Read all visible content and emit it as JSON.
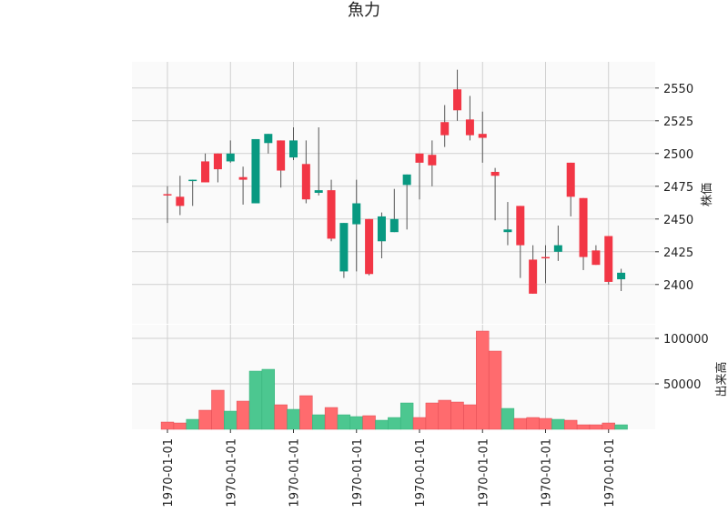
{
  "chart_data": {
    "type": "candlestick",
    "title": "魚力",
    "price_ylabel": "株価",
    "volume_ylabel": "出来高",
    "price_ylim": [
      2370,
      2570
    ],
    "volume_ylim": [
      0,
      115000
    ],
    "price_ticks": [
      2400,
      2425,
      2450,
      2475,
      2500,
      2525,
      2550
    ],
    "volume_ticks": [
      50000,
      100000
    ],
    "x_tick_labels": [
      "1970-01-01",
      "1970-01-01",
      "1970-01-01",
      "1970-01-01",
      "1970-01-01",
      "1970-01-01",
      "1970-01-01",
      "1970-01-01"
    ],
    "x_tick_indices": [
      0,
      5,
      10,
      15,
      20,
      25,
      30,
      35
    ],
    "up_color": "#f23645",
    "down_color": "#089981",
    "candles": [
      {
        "open": 2469,
        "high": 2475,
        "low": 2447,
        "close": 2469,
        "volume": 8000
      },
      {
        "open": 2460,
        "high": 2483,
        "low": 2453,
        "close": 2467,
        "volume": 7000
      },
      {
        "open": 2480,
        "high": 2480,
        "low": 2460,
        "close": 2479,
        "volume": 11000
      },
      {
        "open": 2478,
        "high": 2500,
        "low": 2478,
        "close": 2494,
        "volume": 21000
      },
      {
        "open": 2488,
        "high": 2500,
        "low": 2478,
        "close": 2500,
        "volume": 43000
      },
      {
        "open": 2500,
        "high": 2510,
        "low": 2493,
        "close": 2494,
        "volume": 20000
      },
      {
        "open": 2480,
        "high": 2490,
        "low": 2461,
        "close": 2482,
        "volume": 31000
      },
      {
        "open": 2511,
        "high": 2511,
        "low": 2462,
        "close": 2462,
        "volume": 64000
      },
      {
        "open": 2515,
        "high": 2515,
        "low": 2500,
        "close": 2508,
        "volume": 66000
      },
      {
        "open": 2487,
        "high": 2510,
        "low": 2474,
        "close": 2510,
        "volume": 27000
      },
      {
        "open": 2510,
        "high": 2520,
        "low": 2495,
        "close": 2497,
        "volume": 22000
      },
      {
        "open": 2465,
        "high": 2510,
        "low": 2462,
        "close": 2492,
        "volume": 37000
      },
      {
        "open": 2472,
        "high": 2520,
        "low": 2468,
        "close": 2470,
        "volume": 16000
      },
      {
        "open": 2435,
        "high": 2480,
        "low": 2433,
        "close": 2472,
        "volume": 24000
      },
      {
        "open": 2447,
        "high": 2447,
        "low": 2405,
        "close": 2410,
        "volume": 16000
      },
      {
        "open": 2462,
        "high": 2480,
        "low": 2410,
        "close": 2446,
        "volume": 14000
      },
      {
        "open": 2408,
        "high": 2450,
        "low": 2407,
        "close": 2450,
        "volume": 15000
      },
      {
        "open": 2452,
        "high": 2455,
        "low": 2420,
        "close": 2433,
        "volume": 10000
      },
      {
        "open": 2450,
        "high": 2473,
        "low": 2440,
        "close": 2440,
        "volume": 13000
      },
      {
        "open": 2484,
        "high": 2484,
        "low": 2442,
        "close": 2476,
        "volume": 29000
      },
      {
        "open": 2493,
        "high": 2500,
        "low": 2465,
        "close": 2500,
        "volume": 13000
      },
      {
        "open": 2491,
        "high": 2510,
        "low": 2475,
        "close": 2499,
        "volume": 29000
      },
      {
        "open": 2514,
        "high": 2537,
        "low": 2505,
        "close": 2524,
        "volume": 32000
      },
      {
        "open": 2533,
        "high": 2564,
        "low": 2525,
        "close": 2549,
        "volume": 30000
      },
      {
        "open": 2514,
        "high": 2544,
        "low": 2510,
        "close": 2526,
        "volume": 27000
      },
      {
        "open": 2512,
        "high": 2532,
        "low": 2493,
        "close": 2515,
        "volume": 108000
      },
      {
        "open": 2483,
        "high": 2489,
        "low": 2449,
        "close": 2486,
        "volume": 86000
      },
      {
        "open": 2442,
        "high": 2463,
        "low": 2430,
        "close": 2440,
        "volume": 23000
      },
      {
        "open": 2430,
        "high": 2460,
        "low": 2405,
        "close": 2460,
        "volume": 12000
      },
      {
        "open": 2393,
        "high": 2430,
        "low": 2393,
        "close": 2419,
        "volume": 13000
      },
      {
        "open": 2420,
        "high": 2430,
        "low": 2401,
        "close": 2421,
        "volume": 12000
      },
      {
        "open": 2430,
        "high": 2445,
        "low": 2418,
        "close": 2425,
        "volume": 11000
      },
      {
        "open": 2467,
        "high": 2493,
        "low": 2452,
        "close": 2493,
        "volume": 10000
      },
      {
        "open": 2421,
        "high": 2466,
        "low": 2411,
        "close": 2466,
        "volume": 5000
      },
      {
        "open": 2415,
        "high": 2430,
        "low": 2415,
        "close": 2426,
        "volume": 5000
      },
      {
        "open": 2402,
        "high": 2437,
        "low": 2400,
        "close": 2437,
        "volume": 7000
      },
      {
        "open": 2409,
        "high": 2412,
        "low": 2395,
        "close": 2404,
        "volume": 5000
      }
    ]
  }
}
